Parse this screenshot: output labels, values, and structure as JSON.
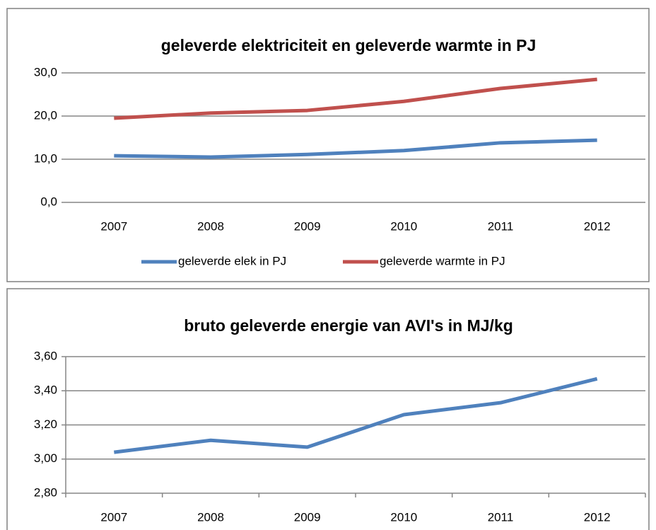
{
  "chart_data": [
    {
      "type": "line",
      "title": "geleverde elektriciteit en geleverde warmte in PJ",
      "categories": [
        "2007",
        "2008",
        "2009",
        "2010",
        "2011",
        "2012"
      ],
      "series": [
        {
          "name": "geleverde elek in PJ",
          "color": "#4f81bd",
          "values": [
            10.8,
            10.5,
            11.1,
            12.0,
            13.8,
            14.4
          ]
        },
        {
          "name": "geleverde warmte in PJ",
          "color": "#c0504d",
          "values": [
            19.5,
            20.7,
            21.3,
            23.4,
            26.4,
            28.5
          ]
        }
      ],
      "ylim": [
        0,
        30
      ],
      "yticks": [
        {
          "value": 0,
          "label": "0,0"
        },
        {
          "value": 10,
          "label": "10,0"
        },
        {
          "value": 20,
          "label": "20,0"
        },
        {
          "value": 30,
          "label": "30,0"
        }
      ],
      "grid": true,
      "legend": "bottom"
    },
    {
      "type": "line",
      "title": "bruto geleverde energie van AVI's in MJ/kg",
      "categories": [
        "2007",
        "2008",
        "2009",
        "2010",
        "2011",
        "2012"
      ],
      "values": [
        3.04,
        3.11,
        3.07,
        3.26,
        3.33,
        3.47
      ],
      "color": "#4f81bd",
      "ylim": [
        2.8,
        3.6
      ],
      "yticks": [
        {
          "value": 2.8,
          "label": "2,80"
        },
        {
          "value": 3.0,
          "label": "3,00"
        },
        {
          "value": 3.2,
          "label": "3,20"
        },
        {
          "value": 3.4,
          "label": "3,40"
        },
        {
          "value": 3.6,
          "label": "3,60"
        }
      ],
      "grid": true
    }
  ]
}
